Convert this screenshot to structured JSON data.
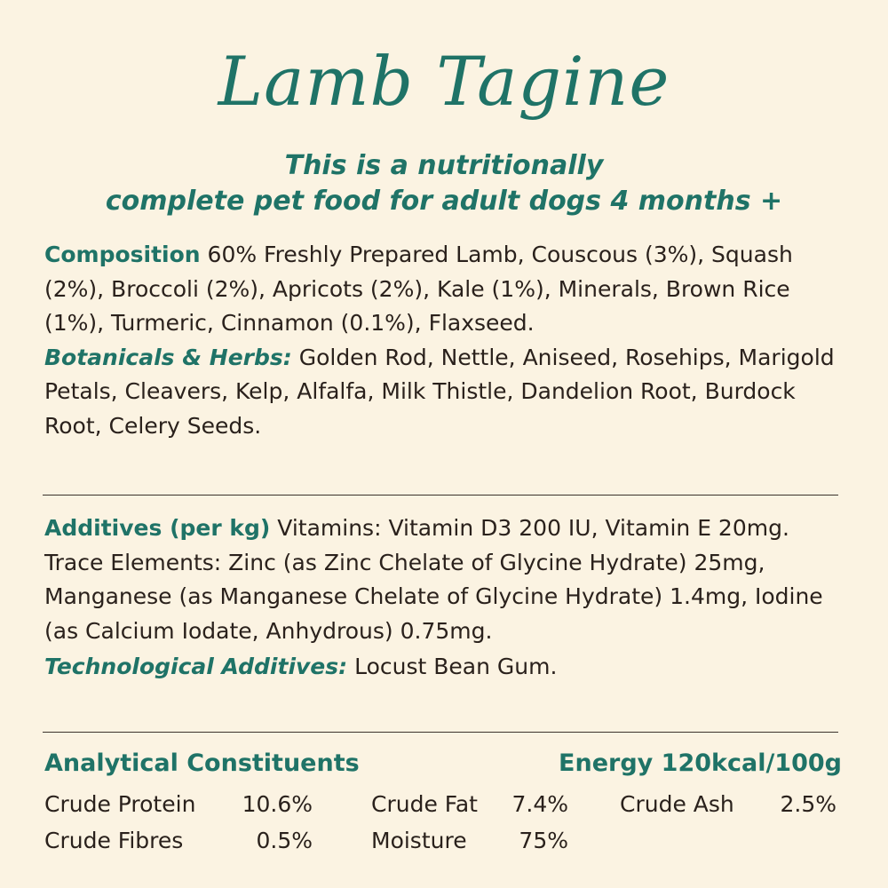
{
  "title": "Lamb Tagine",
  "subtitle": {
    "line1": "This is a nutritionally",
    "line2": "complete pet food for adult dogs 4 months +"
  },
  "composition": {
    "heading": "Composition",
    "text": "60% Freshly Prepared Lamb, Couscous (3%), Squash (2%), Broccoli (2%), Apricots (2%), Kale (1%), Minerals, Brown Rice (1%), Turmeric, Cinnamon (0.1%), Flaxseed."
  },
  "botanicals": {
    "heading": "Botanicals & Herbs:",
    "text": "Golden Rod, Nettle, Aniseed, Rosehips, Marigold Petals, Cleavers, Kelp, Alfalfa, Milk Thistle, Dandelion Root, Burdock Root, Celery Seeds."
  },
  "additives": {
    "heading": "Additives (per kg)",
    "text": "Vitamins: Vitamin D3 200 IU, Vitamin E 20mg. Trace Elements: Zinc (as Zinc Chelate of Glycine Hydrate) 25mg, Manganese (as Manganese Chelate of Glycine Hydrate) 1.4mg, Iodine (as Calcium Iodate, Anhydrous) 0.75mg."
  },
  "technological": {
    "heading": "Technological Additives:",
    "text": "Locust Bean Gum."
  },
  "analytical": {
    "heading": "Analytical Constituents",
    "energy": "Energy 120kcal/100g",
    "items": {
      "protein": {
        "label": "Crude Protein",
        "value": "10.6%"
      },
      "fat": {
        "label": "Crude Fat",
        "value": "7.4%"
      },
      "ash": {
        "label": "Crude Ash",
        "value": "2.5%"
      },
      "fibres": {
        "label": "Crude Fibres",
        "value": "0.5%"
      },
      "moisture": {
        "label": "Moisture",
        "value": "75%"
      }
    }
  },
  "colors": {
    "background": "#fbf3e2",
    "accent": "#1f7367",
    "text": "#2a211c"
  }
}
